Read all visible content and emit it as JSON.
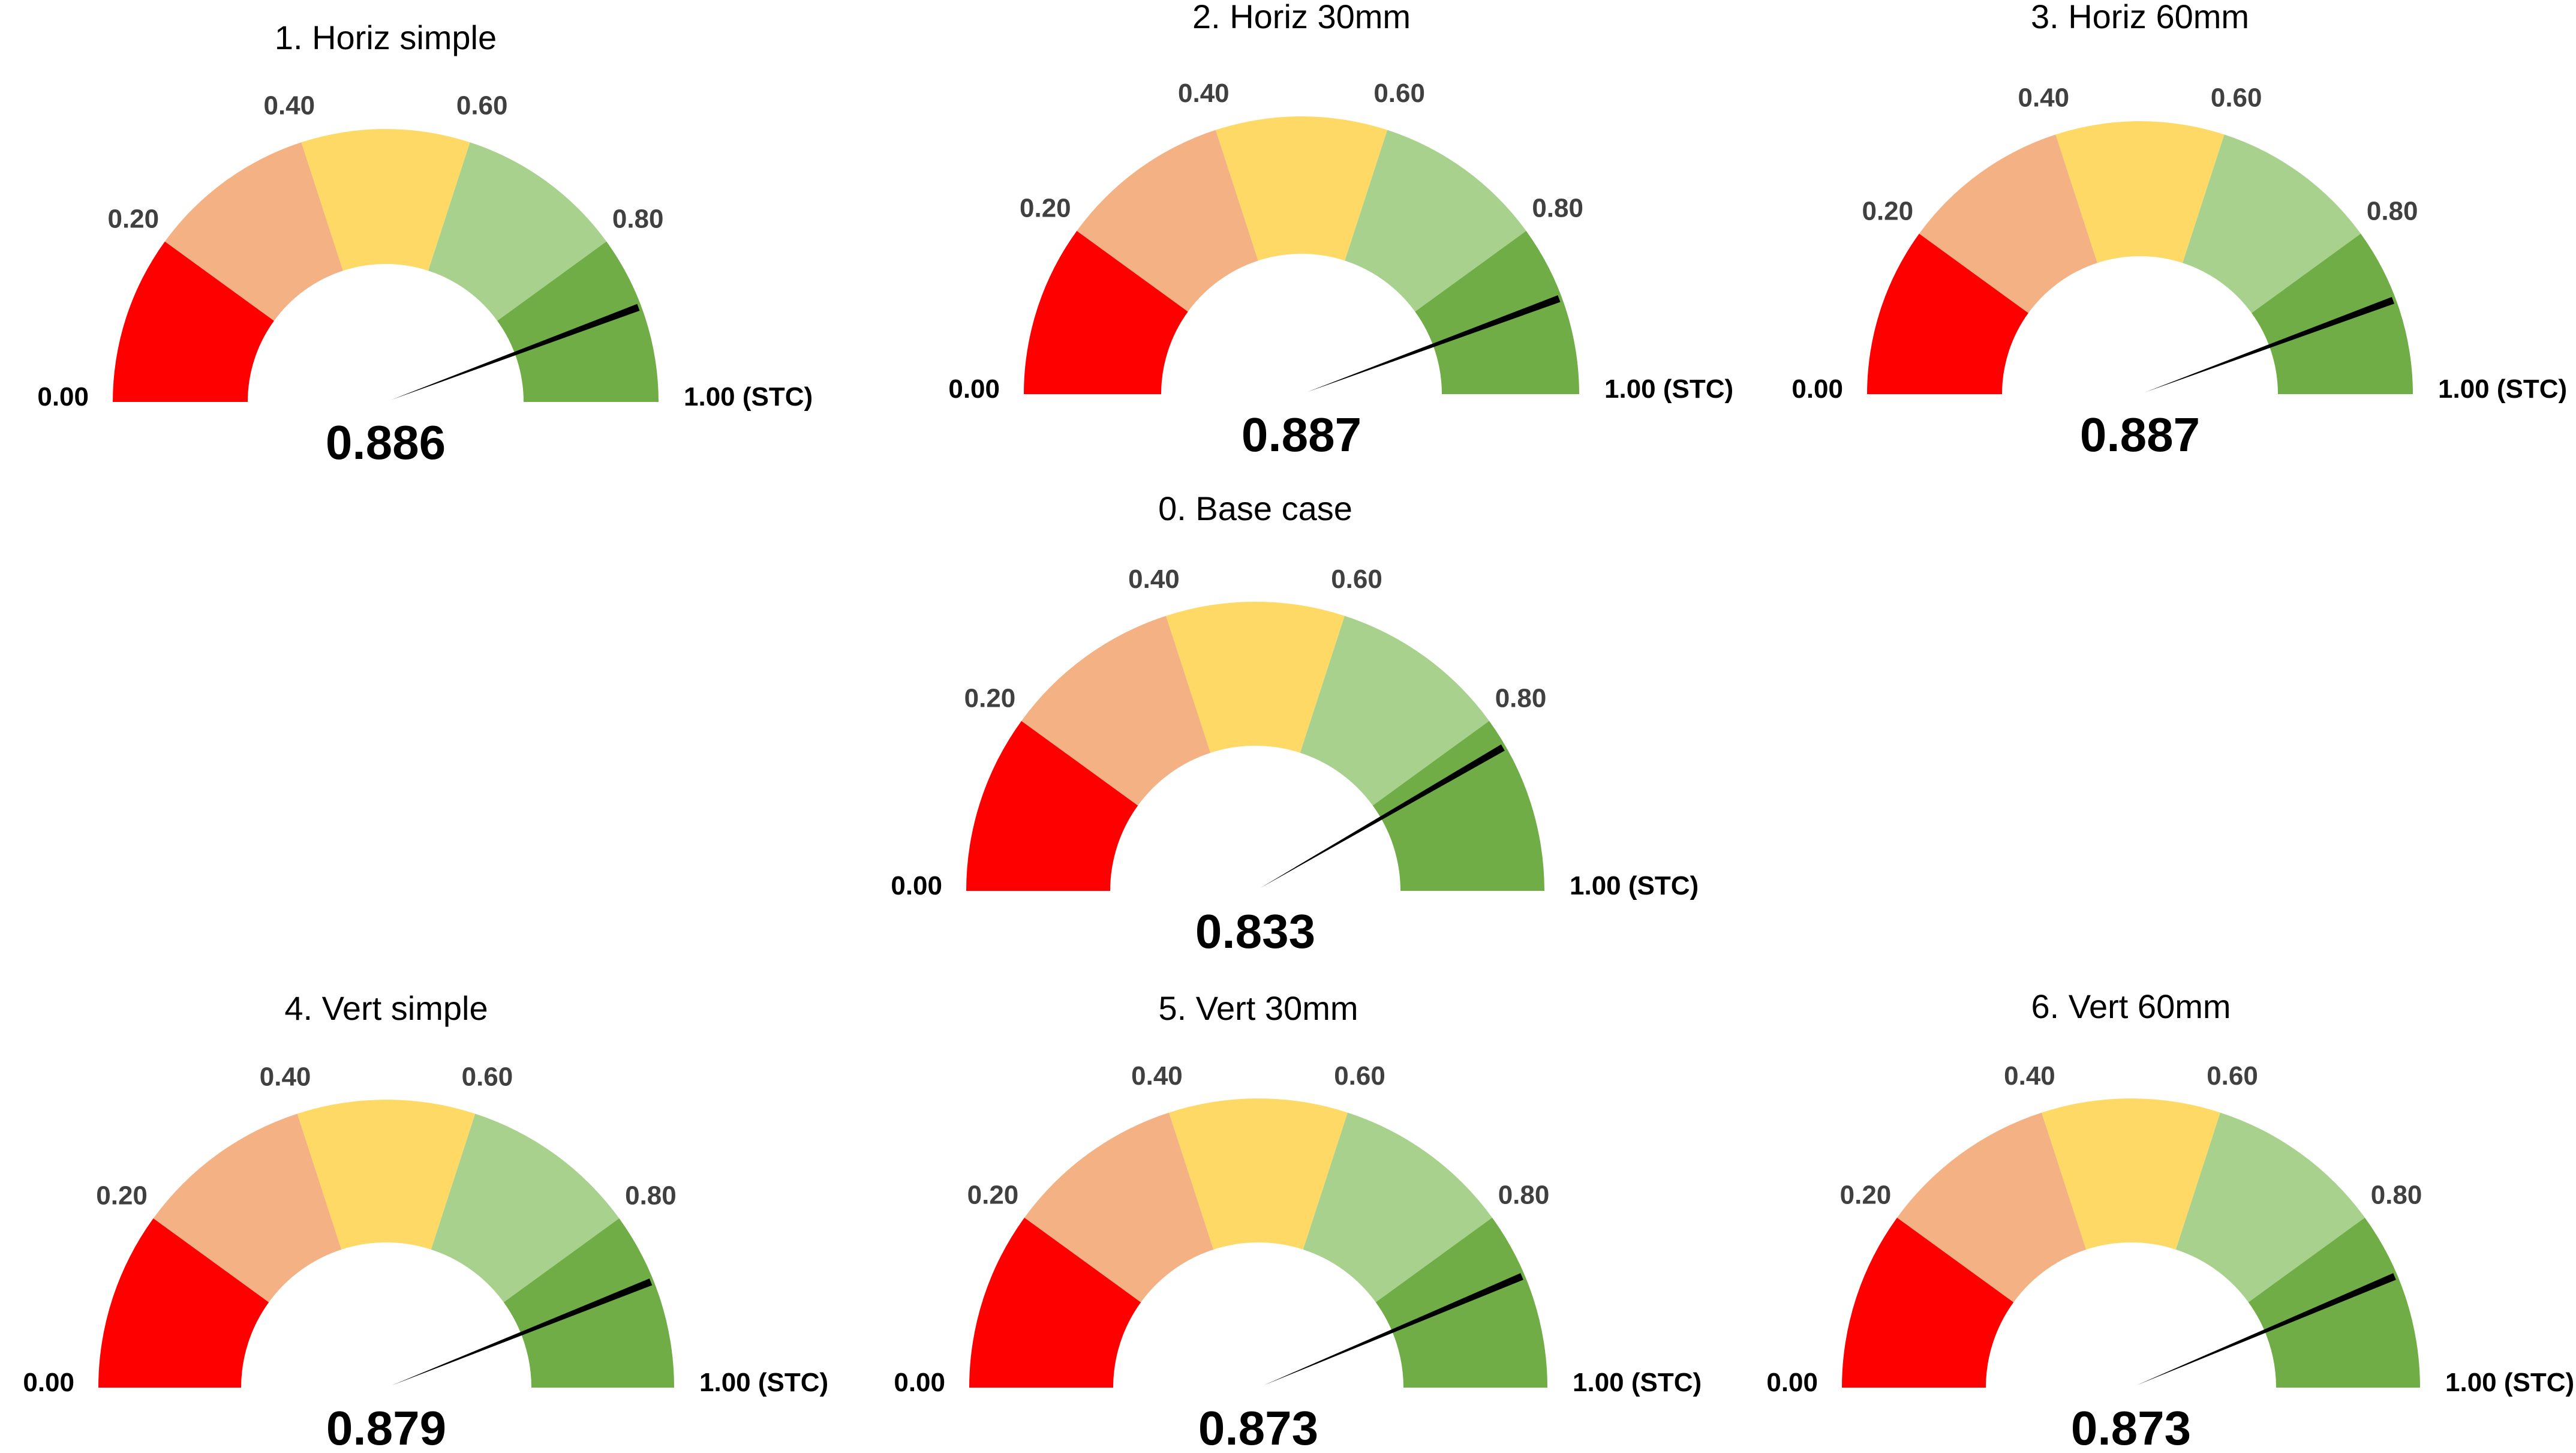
{
  "chart_data": {
    "type": "gauge",
    "scale": {
      "min": 0,
      "max": 1
    },
    "tick_labels": [
      "0.00",
      "0.20",
      "0.40",
      "0.60",
      "0.80",
      "1.00 (STC)"
    ],
    "bands": [
      {
        "from": 0.0,
        "to": 0.2,
        "color": "#ff0000"
      },
      {
        "from": 0.2,
        "to": 0.4,
        "color": "#f4b183"
      },
      {
        "from": 0.4,
        "to": 0.6,
        "color": "#ffd966"
      },
      {
        "from": 0.6,
        "to": 0.8,
        "color": "#a9d18e"
      },
      {
        "from": 0.8,
        "to": 1.0,
        "color": "#70ad47"
      }
    ],
    "needle_color": "#000000",
    "gauges": [
      {
        "id": "horiz-simple",
        "title": "1. Horiz simple",
        "value": 0.886,
        "value_label": "0.886"
      },
      {
        "id": "horiz-30mm",
        "title": "2. Horiz 30mm",
        "value": 0.887,
        "value_label": "0.887"
      },
      {
        "id": "horiz-60mm",
        "title": "3. Horiz 60mm",
        "value": 0.887,
        "value_label": "0.887"
      },
      {
        "id": "base-case",
        "title": "0. Base case",
        "value": 0.833,
        "value_label": "0.833"
      },
      {
        "id": "vert-simple",
        "title": "4. Vert simple",
        "value": 0.879,
        "value_label": "0.879"
      },
      {
        "id": "vert-30mm",
        "title": "5. Vert 30mm",
        "value": 0.873,
        "value_label": "0.873"
      },
      {
        "id": "vert-60mm",
        "title": "6. Vert 60mm",
        "value": 0.873,
        "value_label": "0.873"
      }
    ]
  }
}
